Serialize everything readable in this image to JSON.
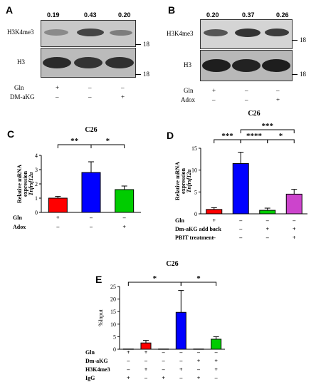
{
  "panel_a": {
    "letter": "A",
    "values": [
      "0.19",
      "0.43",
      "0.20"
    ],
    "top_label": "H3K4me3",
    "bottom_label": "H3",
    "marker": "18",
    "rows": [
      {
        "name": "Gln",
        "signs": [
          "+",
          "–",
          "–"
        ]
      },
      {
        "name": "DM-aKG",
        "signs": [
          "–",
          "–",
          "+"
        ]
      }
    ]
  },
  "panel_b": {
    "letter": "B",
    "values": [
      "0.20",
      "0.37",
      "0.26"
    ],
    "top_label": "H3K4me3",
    "bottom_label": "H3",
    "marker": "18",
    "rows": [
      {
        "name": "Gln",
        "signs": [
          "+",
          "–",
          "–"
        ]
      },
      {
        "name": "Adox",
        "signs": [
          "–",
          "–",
          "+"
        ]
      }
    ]
  },
  "chart_data": [
    {
      "panel": "C",
      "type": "bar",
      "title": "C26",
      "ylabel_lines": [
        "Relative mRNA",
        "expression",
        "Tnfrsf12a"
      ],
      "ylim": [
        0,
        4
      ],
      "yticks": [
        "0",
        "1",
        "2",
        "3",
        "4"
      ],
      "values": [
        1.0,
        2.8,
        1.6
      ],
      "errors": [
        0.12,
        0.75,
        0.25
      ],
      "colors": [
        "#ff0000",
        "#0000ff",
        "#00cc00"
      ],
      "significance": [
        "**",
        "*"
      ],
      "rows": [
        {
          "name": "Gln",
          "signs": [
            "+",
            "–",
            "–"
          ]
        },
        {
          "name": "Adox",
          "signs": [
            "–",
            "–",
            "+"
          ]
        }
      ]
    },
    {
      "panel": "D",
      "type": "bar",
      "title": "C26",
      "ylabel_lines": [
        "Relative mRNA",
        "expression",
        "Tnfrsf12a"
      ],
      "ylim": [
        0,
        15
      ],
      "yticks": [
        "0",
        "5",
        "10",
        "15"
      ],
      "values": [
        1.0,
        11.5,
        0.8,
        4.5
      ],
      "errors": [
        0.4,
        2.6,
        0.5,
        1.1
      ],
      "colors": [
        "#ff0000",
        "#0000ff",
        "#00cc00",
        "#cc44cc"
      ],
      "significance": [
        "***",
        "****",
        "*",
        "***"
      ],
      "rows": [
        {
          "name": "Gln",
          "signs": [
            "+",
            "–",
            "–",
            "–"
          ]
        },
        {
          "name": "Dm-aKG add back",
          "signs": [
            "–",
            "–",
            "+",
            "+"
          ]
        },
        {
          "name": "PBIT treatment",
          "signs": [
            "–",
            "–",
            "–",
            "+"
          ]
        }
      ]
    },
    {
      "panel": "E",
      "type": "bar",
      "title": "C26",
      "ylabel": "%Input",
      "ylim": [
        0,
        25
      ],
      "yticks": [
        "0",
        "5",
        "10",
        "15",
        "20",
        "25"
      ],
      "values": [
        0.1,
        2.5,
        0.1,
        14.7,
        0.1,
        4.0
      ],
      "errors": [
        0,
        1.0,
        0,
        8.7,
        0,
        1.0
      ],
      "colors": [
        "#ff0000",
        "#ff0000",
        "#0000ff",
        "#0000ff",
        "#00cc00",
        "#00cc00"
      ],
      "significance": [
        "*",
        "*"
      ],
      "rows": [
        {
          "name": "Gln",
          "signs": [
            "+",
            "+",
            "–",
            "–",
            "–",
            "–"
          ]
        },
        {
          "name": "Dm-aKG",
          "signs": [
            "–",
            "–",
            "–",
            "–",
            "+",
            "+"
          ]
        },
        {
          "name": "H3K4me3",
          "signs": [
            "–",
            "+",
            "–",
            "+",
            "–",
            "+"
          ]
        },
        {
          "name": "IgG",
          "signs": [
            "+",
            "–",
            "+",
            "–",
            "+",
            "–"
          ]
        }
      ]
    }
  ]
}
